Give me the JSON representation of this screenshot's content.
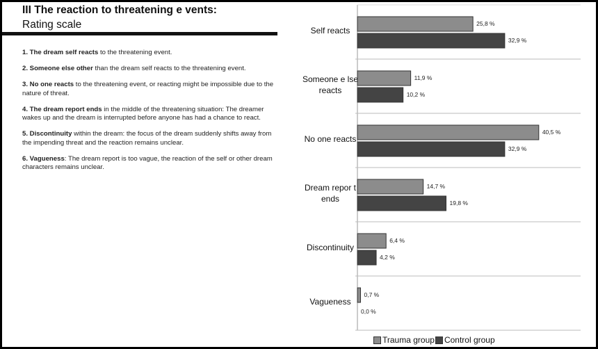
{
  "header": {
    "title": "III  The reaction to threatening e vents:",
    "subtitle": "Rating scale"
  },
  "items": [
    {
      "bold": "1. The dream self reacts",
      "text": " to the threatening event."
    },
    {
      "bold": "2. Someone else other",
      "text": " than the dream self reacts to the threatening event."
    },
    {
      "bold": "3. No one reacts",
      "text": " to the threatening event, or reacting might be impossible due to the nature of threat."
    },
    {
      "bold": "4. The dream report ends",
      "text": " in the middle of the threatening situation: The dreamer wakes up and the dream is interrupted before anyone has had a chance to react."
    },
    {
      "bold": "5. Discontinuity",
      "text": " within the dream: the focus of the dream suddenly shifts away from the impending threat and the reaction remains unclear."
    },
    {
      "bold": "6. Vagueness",
      "text": ": The dream report is too vague, the reaction of the self or other dream characters remains unclear."
    }
  ],
  "chart_data": {
    "type": "bar",
    "orientation": "horizontal",
    "categories": [
      [
        "Self reacts"
      ],
      [
        "Someone e lse",
        "reacts"
      ],
      [
        "No one reacts"
      ],
      [
        "Dream repor t",
        "ends"
      ],
      [
        "Discontinuity"
      ],
      [
        "Vagueness"
      ]
    ],
    "series": [
      {
        "name": "Trauma group",
        "color": "#8c8c8c",
        "values": [
          25.8,
          11.9,
          40.5,
          14.7,
          6.4,
          0.7
        ],
        "labels": [
          "25,8 %",
          "11,9 %",
          "40,5 %",
          "14,7 %",
          "6,4 %",
          "0,7 %"
        ]
      },
      {
        "name": "Control group",
        "color": "#444444",
        "values": [
          32.9,
          10.2,
          32.9,
          19.8,
          4.2,
          0.0
        ],
        "labels": [
          "32,9 %",
          "10,2 %",
          "32,9 %",
          "19,8 %",
          "4,2 %",
          "0,0 %"
        ]
      }
    ],
    "xlim": [
      0,
      50
    ],
    "legend_position": "bottom",
    "grid": true
  }
}
